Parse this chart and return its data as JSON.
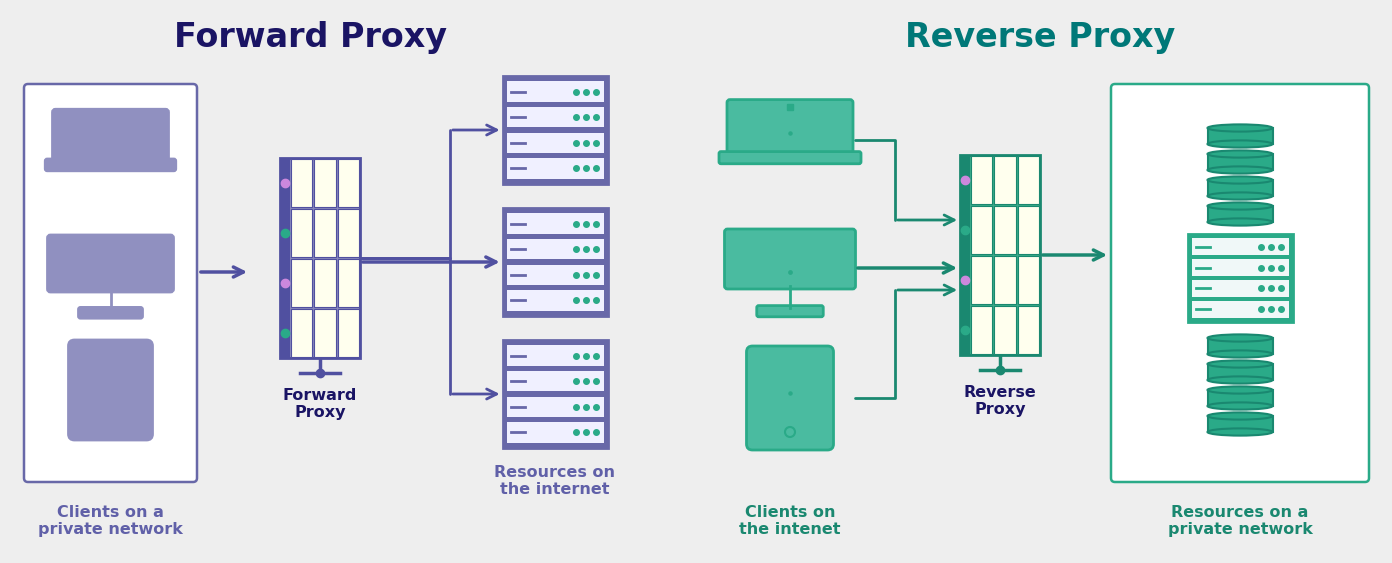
{
  "bg_color": "#eeeeee",
  "left_title": "Forward Proxy",
  "right_title": "Reverse Proxy",
  "left_title_color": "#1a1464",
  "right_title_color": "#007878",
  "purple_main": "#7070aa",
  "purple_border": "#6868a8",
  "purple_dark": "#5050a0",
  "purple_light": "#9090c0",
  "purple_screen": "#9090c0",
  "purple_server_bg": "#8888bb",
  "purple_slot_bg": "#ffffee",
  "teal_main": "#2aaa88",
  "teal_dark": "#1a8870",
  "teal_border": "#2aaa88",
  "teal_screen": "#4abba0",
  "teal_server_bg": "#3aaa88",
  "teal_slot_bg": "#eeffee",
  "text_purple": "#6060a8",
  "text_teal": "#1a8870",
  "text_dark": "#1a1464",
  "white": "#ffffff",
  "label_left_fp": "Clients on a\nprivate network",
  "label_proxy_fp": "Forward\nProxy",
  "label_right_fp": "Resources on\nthe internet",
  "label_left_rp": "Clients on\nthe intenet",
  "label_proxy_rp": "Reverse\nProxy",
  "label_right_rp": "Resources on a\nprivate network"
}
